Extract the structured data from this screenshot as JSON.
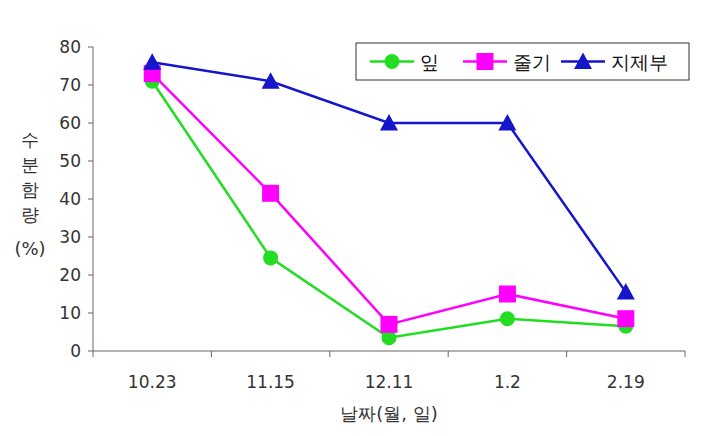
{
  "chart_data": {
    "type": "line",
    "x_label": "날짜(월, 일)",
    "y_label": "수분함량(%)",
    "categories": [
      "10.23",
      "11.15",
      "12.11",
      "1.2",
      "2.19"
    ],
    "series": [
      {
        "name": "잎",
        "color": "#22dd22",
        "marker": "circle",
        "values": [
          71,
          24.5,
          3.5,
          8.5,
          6.5
        ]
      },
      {
        "name": "줄기",
        "color": "#ff00ff",
        "marker": "square",
        "values": [
          73,
          41.5,
          7,
          15,
          8.5
        ]
      },
      {
        "name": "지제부",
        "color": "#1515cc",
        "marker": "triangle",
        "values": [
          76,
          71,
          60,
          60,
          15.5
        ]
      }
    ],
    "ylim": [
      0,
      80
    ],
    "yticks": [
      0,
      10,
      20,
      30,
      40,
      50,
      60,
      70,
      80
    ],
    "grid": false,
    "legend": "upper right"
  }
}
